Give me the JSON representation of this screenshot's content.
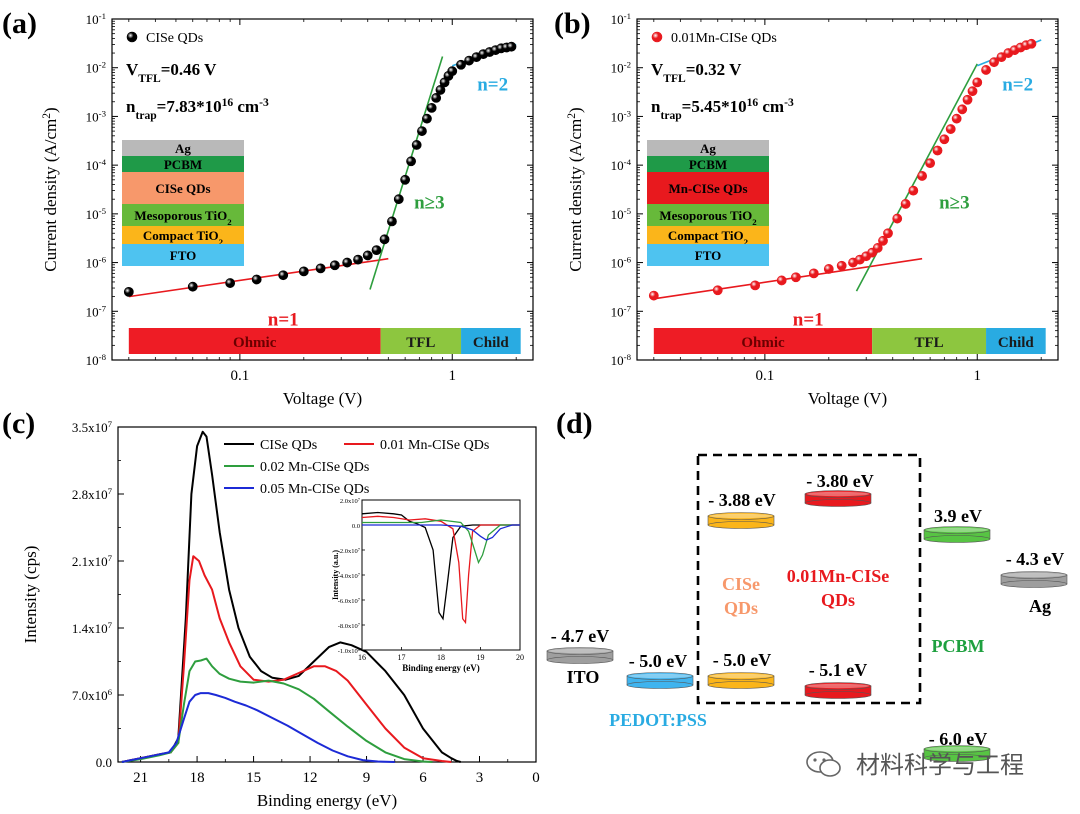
{
  "figure": {
    "panels": [
      {
        "label": "(a)",
        "legend": "CISe QDs",
        "vtfl_prefix": "V",
        "vtfl_sub": "TFL",
        "vtfl_value": "=0.46 V",
        "ntrap_prefix": "n",
        "ntrap_sub": "trap",
        "ntrap_value": "=7.83*10",
        "ntrap_exp": "16",
        "ntrap_unit": " cm",
        "ntrap_unit_exp": "-3",
        "slope_n1": "n=1",
        "slope_n3": "n≥3",
        "slope_n2": "n=2",
        "regions": [
          {
            "label": "Ohmic",
            "from": 0.03,
            "to": 0.46,
            "color": "#ee1c25"
          },
          {
            "label": "TFL",
            "from": 0.46,
            "to": 1.1,
            "color": "#8dc63f"
          },
          {
            "label": "Child",
            "from": 1.1,
            "to": 2.1,
            "color": "#29abe2"
          }
        ],
        "device_stack": [
          {
            "label": "Ag",
            "sub": "",
            "color": "#b9b9b9"
          },
          {
            "label": "PCBM",
            "sub": "",
            "color": "#1f9a48"
          },
          {
            "label": "CISe QDs",
            "sub": "",
            "color": "#f7986b"
          },
          {
            "label": "Mesoporous TiO",
            "sub": "2",
            "color": "#67b93a"
          },
          {
            "label": "Compact TiO",
            "sub": "2",
            "color": "#fbb51a"
          },
          {
            "label": "FTO",
            "sub": "",
            "color": "#4ec3f0"
          }
        ]
      },
      {
        "label": "(b)",
        "legend": "0.01Mn-CISe QDs",
        "vtfl_prefix": "V",
        "vtfl_sub": "TFL",
        "vtfl_value": "=0.32 V",
        "ntrap_prefix": "n",
        "ntrap_sub": "trap",
        "ntrap_value": "=5.45*10",
        "ntrap_exp": "16",
        "ntrap_unit": " cm",
        "ntrap_unit_exp": "-3",
        "slope_n1": "n=1",
        "slope_n3": "n≥3",
        "slope_n2": "n=2",
        "regions": [
          {
            "label": "Ohmic",
            "from": 0.03,
            "to": 0.32,
            "color": "#ee1c25"
          },
          {
            "label": "TFL",
            "from": 0.32,
            "to": 1.1,
            "color": "#8dc63f"
          },
          {
            "label": "Child",
            "from": 1.1,
            "to": 2.1,
            "color": "#29abe2"
          }
        ],
        "device_stack": [
          {
            "label": "Ag",
            "sub": "",
            "color": "#b9b9b9"
          },
          {
            "label": "PCBM",
            "sub": "",
            "color": "#1f9a48"
          },
          {
            "label": "Mn-CISe QDs",
            "sub": "",
            "color": "#e8191e"
          },
          {
            "label": "Mesoporous TiO",
            "sub": "2",
            "color": "#67b93a"
          },
          {
            "label": "Compact TiO",
            "sub": "2",
            "color": "#fbb51a"
          },
          {
            "label": "FTO",
            "sub": "",
            "color": "#4ec3f0"
          }
        ]
      },
      {
        "label": "(c)",
        "inset_ylabel": "Intensity (a.u.)",
        "inset_xlabel": "Binding energy (eV)"
      },
      {
        "label": "(d)",
        "energy_levels": [
          {
            "name": "ITO",
            "value_label": "- 4.7 eV",
            "color": "#9e9e9e",
            "name_color": "#000000"
          },
          {
            "name": "PEDOT:PSS",
            "value_label": "- 5.0 eV",
            "color": "#3fb4ef",
            "name_color": "#29abe2"
          },
          {
            "name": "CISe\nQDs",
            "lumo_label": "- 3.88 eV",
            "homo_label": "- 5.0 eV",
            "color": "#fbb51a",
            "name_color": "#f7986b"
          },
          {
            "name": "0.01Mn-CISe\nQDs",
            "lumo_label": "- 3.80 eV",
            "homo_label": "- 5.1 eV",
            "color": "#e8191e",
            "name_color": "#e8191e"
          },
          {
            "name": "PCBM",
            "lumo_label": "3.9 eV",
            "homo_label": "- 6.0 eV",
            "color": "#57c443",
            "name_color": "#1ea03f"
          },
          {
            "name": "Ag",
            "value_label": "- 4.3 eV",
            "color": "#9e9e9e",
            "name_color": "#000000"
          }
        ]
      }
    ],
    "watermark": "材料科学与工程"
  },
  "chart_data": [
    {
      "type": "scatter",
      "panel": "(a)",
      "xlabel": "Voltage (V)",
      "ylabel": "Current density (A/cm²)",
      "xscale": "log",
      "yscale": "log",
      "xlim": [
        0.025,
        2.4
      ],
      "ylim": [
        1e-08,
        0.1
      ],
      "x_ticks": [
        "0.1",
        "1"
      ],
      "y_ticks": [
        "10⁻⁸",
        "10⁻⁷",
        "10⁻⁶",
        "10⁻⁵",
        "10⁻⁴",
        "10⁻³",
        "10⁻²",
        "10⁻¹"
      ],
      "series": [
        {
          "name": "CISe QDs",
          "color": "#000000",
          "x": [
            0.03,
            0.06,
            0.09,
            0.12,
            0.16,
            0.2,
            0.24,
            0.28,
            0.32,
            0.36,
            0.4,
            0.44,
            0.48,
            0.52,
            0.56,
            0.6,
            0.64,
            0.68,
            0.72,
            0.76,
            0.8,
            0.84,
            0.88,
            0.92,
            0.96,
            1.0,
            1.1,
            1.2,
            1.3,
            1.4,
            1.5,
            1.6,
            1.7,
            1.8,
            1.9
          ],
          "y": [
            2.5e-07,
            3.2e-07,
            3.8e-07,
            4.5e-07,
            5.5e-07,
            6.6e-07,
            7.6e-07,
            8.8e-07,
            1e-06,
            1.15e-06,
            1.4e-06,
            1.8e-06,
            3e-06,
            7e-06,
            2e-05,
            5e-05,
            0.00012,
            0.00026,
            0.0005,
            0.0009,
            0.0015,
            0.0024,
            0.0035,
            0.005,
            0.0068,
            0.0085,
            0.0115,
            0.014,
            0.0165,
            0.019,
            0.021,
            0.023,
            0.025,
            0.026,
            0.027
          ]
        }
      ],
      "fits": [
        {
          "label": "n=1",
          "color": "#e8191e",
          "x": [
            0.03,
            0.5
          ],
          "y": [
            2e-07,
            1.2e-06
          ]
        },
        {
          "label": "n≥3",
          "color": "#2e9e3e",
          "x": [
            0.41,
            0.9
          ],
          "y": [
            2.8e-07,
            0.017
          ]
        },
        {
          "label": "n=2",
          "color": "#29abe2",
          "x": [
            1.0,
            2.0
          ],
          "y": [
            0.011,
            0.03
          ]
        }
      ]
    },
    {
      "type": "scatter",
      "panel": "(b)",
      "xlabel": "Voltage (V)",
      "ylabel": "Current density (A/cm²)",
      "xscale": "log",
      "yscale": "log",
      "xlim": [
        0.025,
        2.4
      ],
      "ylim": [
        1e-08,
        0.1
      ],
      "x_ticks": [
        "0.1",
        "1"
      ],
      "y_ticks": [
        "10⁻⁸",
        "10⁻⁷",
        "10⁻⁶",
        "10⁻⁵",
        "10⁻⁴",
        "10⁻³",
        "10⁻²",
        "10⁻¹"
      ],
      "series": [
        {
          "name": "0.01Mn-CISe QDs",
          "color": "#e8191e",
          "x": [
            0.03,
            0.06,
            0.09,
            0.12,
            0.14,
            0.17,
            0.2,
            0.23,
            0.26,
            0.28,
            0.3,
            0.32,
            0.34,
            0.36,
            0.38,
            0.42,
            0.46,
            0.5,
            0.55,
            0.6,
            0.65,
            0.7,
            0.75,
            0.8,
            0.85,
            0.9,
            0.95,
            1.0,
            1.1,
            1.2,
            1.3,
            1.4,
            1.5,
            1.6,
            1.7,
            1.8
          ],
          "y": [
            2.1e-07,
            2.7e-07,
            3.4e-07,
            4.3e-07,
            5e-07,
            6e-07,
            7.4e-07,
            8.6e-07,
            1e-06,
            1.15e-06,
            1.35e-06,
            1.6e-06,
            2e-06,
            2.8e-06,
            4e-06,
            8e-06,
            1.6e-05,
            3e-05,
            6e-05,
            0.00011,
            0.0002,
            0.00034,
            0.00055,
            0.0009,
            0.0014,
            0.0022,
            0.0033,
            0.005,
            0.009,
            0.013,
            0.0165,
            0.02,
            0.023,
            0.026,
            0.029,
            0.031
          ]
        }
      ],
      "fits": [
        {
          "label": "n=1",
          "color": "#e8191e",
          "x": [
            0.03,
            0.55
          ],
          "y": [
            1.8e-07,
            1.2e-06
          ]
        },
        {
          "label": "n≥3",
          "color": "#2e9e3e",
          "x": [
            0.27,
            1.0
          ],
          "y": [
            2.6e-07,
            0.012
          ]
        },
        {
          "label": "n=2",
          "color": "#29abe2",
          "x": [
            1.0,
            2.0
          ],
          "y": [
            0.011,
            0.037
          ]
        }
      ]
    },
    {
      "type": "line",
      "panel": "(c)",
      "xlabel": "Binding energy (eV)",
      "ylabel": "Intensity (cps)",
      "xlim": [
        22.2,
        0
      ],
      "ylim": [
        0,
        35000000.0
      ],
      "x_ticks": [
        "21",
        "18",
        "15",
        "12",
        "9",
        "6",
        "3",
        "0"
      ],
      "y_ticks": [
        "0.0",
        "7.0x10⁶",
        "1.4x10⁷",
        "2.1x10⁷",
        "2.8x10⁷",
        "3.5x10⁷"
      ],
      "series": [
        {
          "name": "CISe QDs",
          "color": "#000000",
          "x": [
            22.0,
            21.0,
            20.0,
            19.4,
            19.0,
            18.6,
            18.3,
            18.0,
            17.7,
            17.5,
            17.2,
            16.8,
            16.3,
            15.8,
            15.2,
            14.6,
            14.0,
            13.3,
            12.6,
            11.8,
            11.0,
            10.4,
            9.8,
            9.0,
            8.0,
            7.0,
            6.0,
            5.0,
            4.5,
            4.2,
            4.0
          ],
          "y": [
            0,
            400000.0,
            800000.0,
            1000000.0,
            2500000.0,
            15000000.0,
            28000000.0,
            33000000.0,
            34500000.0,
            34000000.0,
            30000000.0,
            24000000.0,
            18000000.0,
            14000000.0,
            11000000.0,
            9500000.0,
            8800000.0,
            8600000.0,
            9000000.0,
            10500000.0,
            12000000.0,
            12500000.0,
            12200000.0,
            11500000.0,
            9500000.0,
            7000000.0,
            3500000.0,
            1000000.0,
            400000.0,
            100000.0,
            0
          ]
        },
        {
          "name": "0.01 Mn-CISe QDs",
          "color": "#e8191e",
          "x": [
            22.0,
            21.0,
            20.0,
            19.4,
            19.0,
            18.7,
            18.4,
            18.2,
            17.9,
            17.6,
            17.2,
            16.8,
            16.3,
            15.7,
            15.0,
            14.2,
            13.4,
            12.6,
            11.8,
            11.2,
            10.6,
            10.0,
            9.0,
            8.0,
            7.0,
            6.0,
            5.0,
            4.5
          ],
          "y": [
            0,
            400000.0,
            800000.0,
            1000000.0,
            2000000.0,
            10000000.0,
            19000000.0,
            21500000.0,
            21000000.0,
            19500000.0,
            18000000.0,
            15000000.0,
            12500000.0,
            10000000.0,
            8600000.0,
            8400000.0,
            8600000.0,
            9300000.0,
            10000000.0,
            10000000.0,
            9500000.0,
            8500000.0,
            6000000.0,
            3500000.0,
            1500000.0,
            400000.0,
            100000.0,
            0
          ]
        },
        {
          "name": "0.02 Mn-CISe QDs",
          "color": "#2e9e3e",
          "x": [
            22.0,
            21.0,
            20.0,
            19.4,
            19.0,
            18.7,
            18.4,
            18.1,
            17.8,
            17.5,
            17.2,
            16.8,
            16.3,
            15.7,
            15.0,
            14.2,
            13.4,
            12.6,
            11.8,
            11.0,
            10.0,
            9.0,
            8.0,
            7.0,
            6.0,
            5.5
          ],
          "y": [
            0,
            300000.0,
            700000.0,
            1000000.0,
            2000000.0,
            6000000.0,
            9500000.0,
            10500000.0,
            10600000.0,
            10800000.0,
            10000000.0,
            9200000.0,
            8700000.0,
            8400000.0,
            8300000.0,
            8500000.0,
            8200000.0,
            7600000.0,
            6600000.0,
            5300000.0,
            3700000.0,
            2200000.0,
            1000000.0,
            300000.0,
            50000.0,
            0
          ]
        },
        {
          "name": "0.05 Mn-CISe QDs",
          "color": "#1c2ad6",
          "x": [
            22.0,
            21.0,
            20.0,
            19.5,
            19.1,
            18.7,
            18.4,
            18.1,
            17.8,
            17.4,
            17.0,
            16.5,
            16.0,
            15.4,
            14.8,
            14.0,
            13.2,
            12.4,
            11.6,
            10.8,
            10.0,
            9.2,
            8.4,
            7.5
          ],
          "y": [
            0,
            400000.0,
            800000.0,
            1000000.0,
            2000000.0,
            4500000.0,
            6300000.0,
            7000000.0,
            7200000.0,
            7200000.0,
            7000000.0,
            6700000.0,
            6300000.0,
            5900000.0,
            5400000.0,
            4600000.0,
            3800000.0,
            2900000.0,
            2000000.0,
            1200000.0,
            600000.0,
            200000.0,
            50000.0,
            0
          ]
        }
      ],
      "inset": {
        "xlim": [
          16,
          20
        ],
        "ylim": [
          -100000000.0,
          20000000.0
        ],
        "x_ticks": [
          "16",
          "17",
          "18",
          "19",
          "20"
        ],
        "y_ticks": [
          "-1.0x10⁸",
          "-8.0x10⁷",
          "-6.0x10⁷",
          "-4.0x10⁷",
          "-2.0x10⁷",
          "0.0",
          "2.0x10⁷"
        ],
        "series": [
          {
            "name": "CISe QDs",
            "color": "#000000",
            "x": [
              16.0,
              16.4,
              16.8,
              17.0,
              17.2,
              17.4,
              17.6,
              17.8,
              17.95,
              18.05,
              18.15,
              18.3,
              18.5,
              18.8,
              19.2,
              20.0
            ],
            "y": [
              9000000.0,
              10000000.0,
              9000000.0,
              8000000.0,
              3000000.0,
              1000000.0,
              -2000000.0,
              -20000000.0,
              -70000000.0,
              -75000000.0,
              -50000000.0,
              -10000000.0,
              -1000000.0,
              0,
              0,
              0
            ]
          },
          {
            "name": "0.01 Mn-CISe QDs",
            "color": "#e8191e",
            "x": [
              16.0,
              16.4,
              16.8,
              17.2,
              17.6,
              18.0,
              18.3,
              18.45,
              18.55,
              18.62,
              18.7,
              18.8,
              19.0,
              19.5,
              20.0
            ],
            "y": [
              6000000.0,
              7000000.0,
              6000000.0,
              4000000.0,
              5000000.0,
              3000000.0,
              -3000000.0,
              -30000000.0,
              -75000000.0,
              -78000000.0,
              -40000000.0,
              -5000000.0,
              0,
              0,
              0
            ]
          },
          {
            "name": "0.02 Mn-CISe QDs",
            "color": "#2e9e3e",
            "x": [
              16.0,
              16.5,
              17.0,
              17.5,
              18.0,
              18.5,
              18.7,
              18.85,
              18.95,
              19.05,
              19.2,
              19.5,
              20.0
            ],
            "y": [
              2000000.0,
              2000000.0,
              2000000.0,
              2000000.0,
              4000000.0,
              2000000.0,
              -5000000.0,
              -20000000.0,
              -30000000.0,
              -24000000.0,
              -8000000.0,
              0,
              0
            ]
          },
          {
            "name": "0.05 Mn-CISe QDs",
            "color": "#1c2ad6",
            "x": [
              16.0,
              16.5,
              17.0,
              17.5,
              18.0,
              18.5,
              18.8,
              19.0,
              19.15,
              19.3,
              19.5,
              19.8,
              20.0
            ],
            "y": [
              0,
              0,
              0,
              0,
              0,
              -1000000.0,
              -4000000.0,
              -9000000.0,
              -12000000.0,
              -10000000.0,
              -3000000.0,
              0,
              0
            ]
          }
        ]
      }
    }
  ]
}
